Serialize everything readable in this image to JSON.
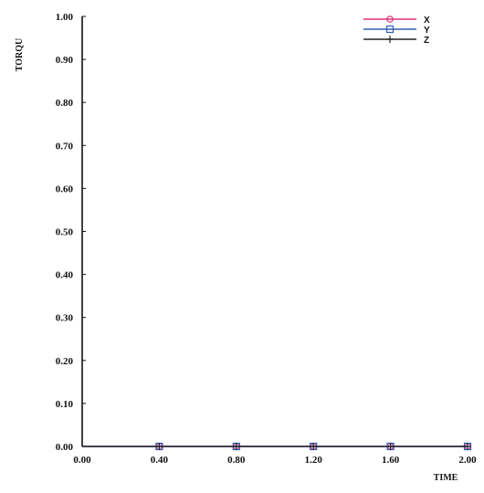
{
  "chart_data": {
    "type": "line",
    "title": "",
    "xlabel": "TIME",
    "ylabel": "TORQU",
    "xlim": [
      0,
      2.0
    ],
    "ylim": [
      0,
      1.0
    ],
    "x_ticks": [
      "0.00",
      "0.40",
      "0.80",
      "1.20",
      "1.60",
      "2.00"
    ],
    "y_ticks": [
      "0.00",
      "0.10",
      "0.20",
      "0.30",
      "0.40",
      "0.50",
      "0.60",
      "0.70",
      "0.80",
      "0.90",
      "1.00"
    ],
    "grid": false,
    "legend_position": "top-right",
    "x": [
      0.0,
      0.4,
      0.8,
      1.2,
      1.6,
      2.0
    ],
    "series": [
      {
        "name": "X",
        "values": [
          0,
          0,
          0,
          0,
          0,
          0
        ],
        "color": "#e0307a",
        "marker": "circle"
      },
      {
        "name": "Y",
        "values": [
          0,
          0,
          0,
          0,
          0,
          0
        ],
        "color": "#2e5fb8",
        "marker": "square"
      },
      {
        "name": "Z",
        "values": [
          0,
          0,
          0,
          0,
          0,
          0
        ],
        "color": "#222222",
        "marker": "plus"
      }
    ]
  }
}
